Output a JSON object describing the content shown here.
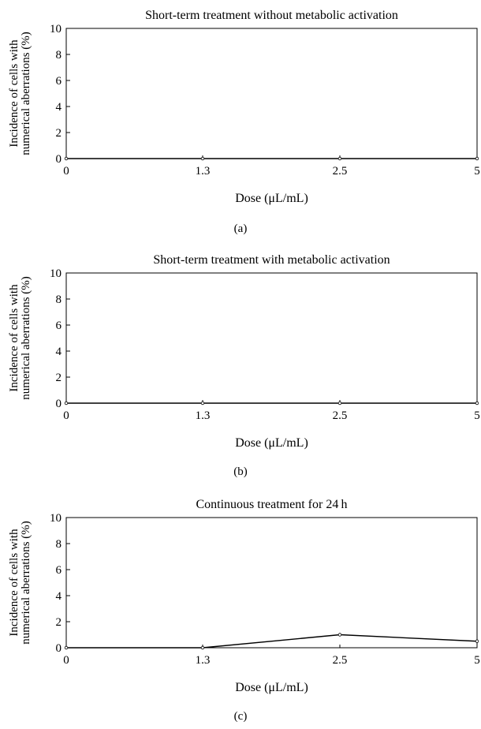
{
  "chart_data": [
    {
      "type": "line",
      "title": "Short-term treatment without metabolic activation",
      "xlabel": "Dose (μL/mL)",
      "ylabel_lines": [
        "Incidence of cells with",
        "numerical aberrations (%)"
      ],
      "categories": [
        "0",
        "1.3",
        "2.5",
        "5"
      ],
      "values": [
        0,
        0,
        0,
        0
      ],
      "yticks": [
        "0",
        "2",
        "4",
        "6",
        "8",
        "10"
      ],
      "ylim": [
        0,
        10
      ],
      "caption": "(a)"
    },
    {
      "type": "line",
      "title": "Short-term treatment with metabolic activation",
      "xlabel": "Dose (μL/mL)",
      "ylabel_lines": [
        "Incidence of cells with",
        "numerical aberrations (%)"
      ],
      "categories": [
        "0",
        "1.3",
        "2.5",
        "5"
      ],
      "values": [
        0,
        0,
        0,
        0
      ],
      "yticks": [
        "0",
        "2",
        "4",
        "6",
        "8",
        "10"
      ],
      "ylim": [
        0,
        10
      ],
      "caption": "(b)"
    },
    {
      "type": "line",
      "title": "Continuous treatment for 24 h",
      "xlabel": "Dose (μL/mL)",
      "ylabel_lines": [
        "Incidence of cells with",
        "numerical aberrations (%)"
      ],
      "categories": [
        "0",
        "1.3",
        "2.5",
        "5"
      ],
      "values": [
        0,
        0,
        1.0,
        0.5
      ],
      "yticks": [
        "0",
        "2",
        "4",
        "6",
        "8",
        "10"
      ],
      "ylim": [
        0,
        10
      ],
      "caption": "(c)"
    }
  ]
}
